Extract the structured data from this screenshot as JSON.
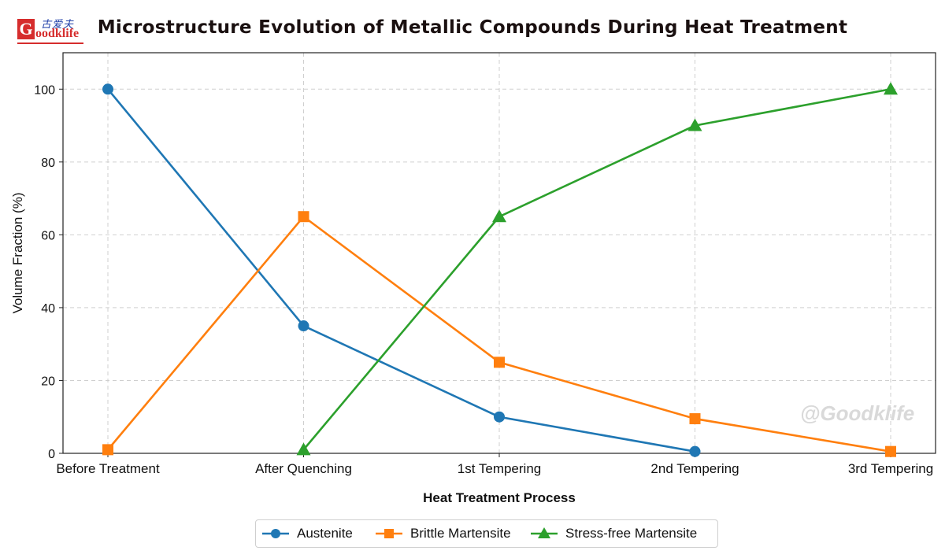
{
  "logo": {
    "mark": "G",
    "cn_text": "古爱夫",
    "en_text": "oodklife"
  },
  "watermark": "@Goodklife",
  "chart_data": {
    "type": "line",
    "title": "Microstructure Evolution of Metallic Compounds During Heat Treatment",
    "xlabel": "Heat Treatment Process",
    "ylabel": "Volume Fraction (%)",
    "categories": [
      "Before Treatment",
      "After Quenching",
      "1st Tempering",
      "2nd Tempering",
      "3rd Tempering"
    ],
    "ylim": [
      0,
      110
    ],
    "yticks": [
      0,
      20,
      40,
      60,
      80,
      100
    ],
    "grid": true,
    "legend_position": "bottom-center",
    "series": [
      {
        "name": "Austenite",
        "color": "#1f77b4",
        "marker": "circle",
        "values": [
          100,
          35,
          10,
          0.5,
          null
        ]
      },
      {
        "name": "Brittle Martensite",
        "color": "#ff7f0e",
        "marker": "square",
        "values": [
          1,
          65,
          25,
          9.5,
          0.5
        ]
      },
      {
        "name": "Stress-free Martensite",
        "color": "#2ca02c",
        "marker": "triangle",
        "values": [
          null,
          1,
          65,
          90,
          100
        ]
      }
    ]
  }
}
